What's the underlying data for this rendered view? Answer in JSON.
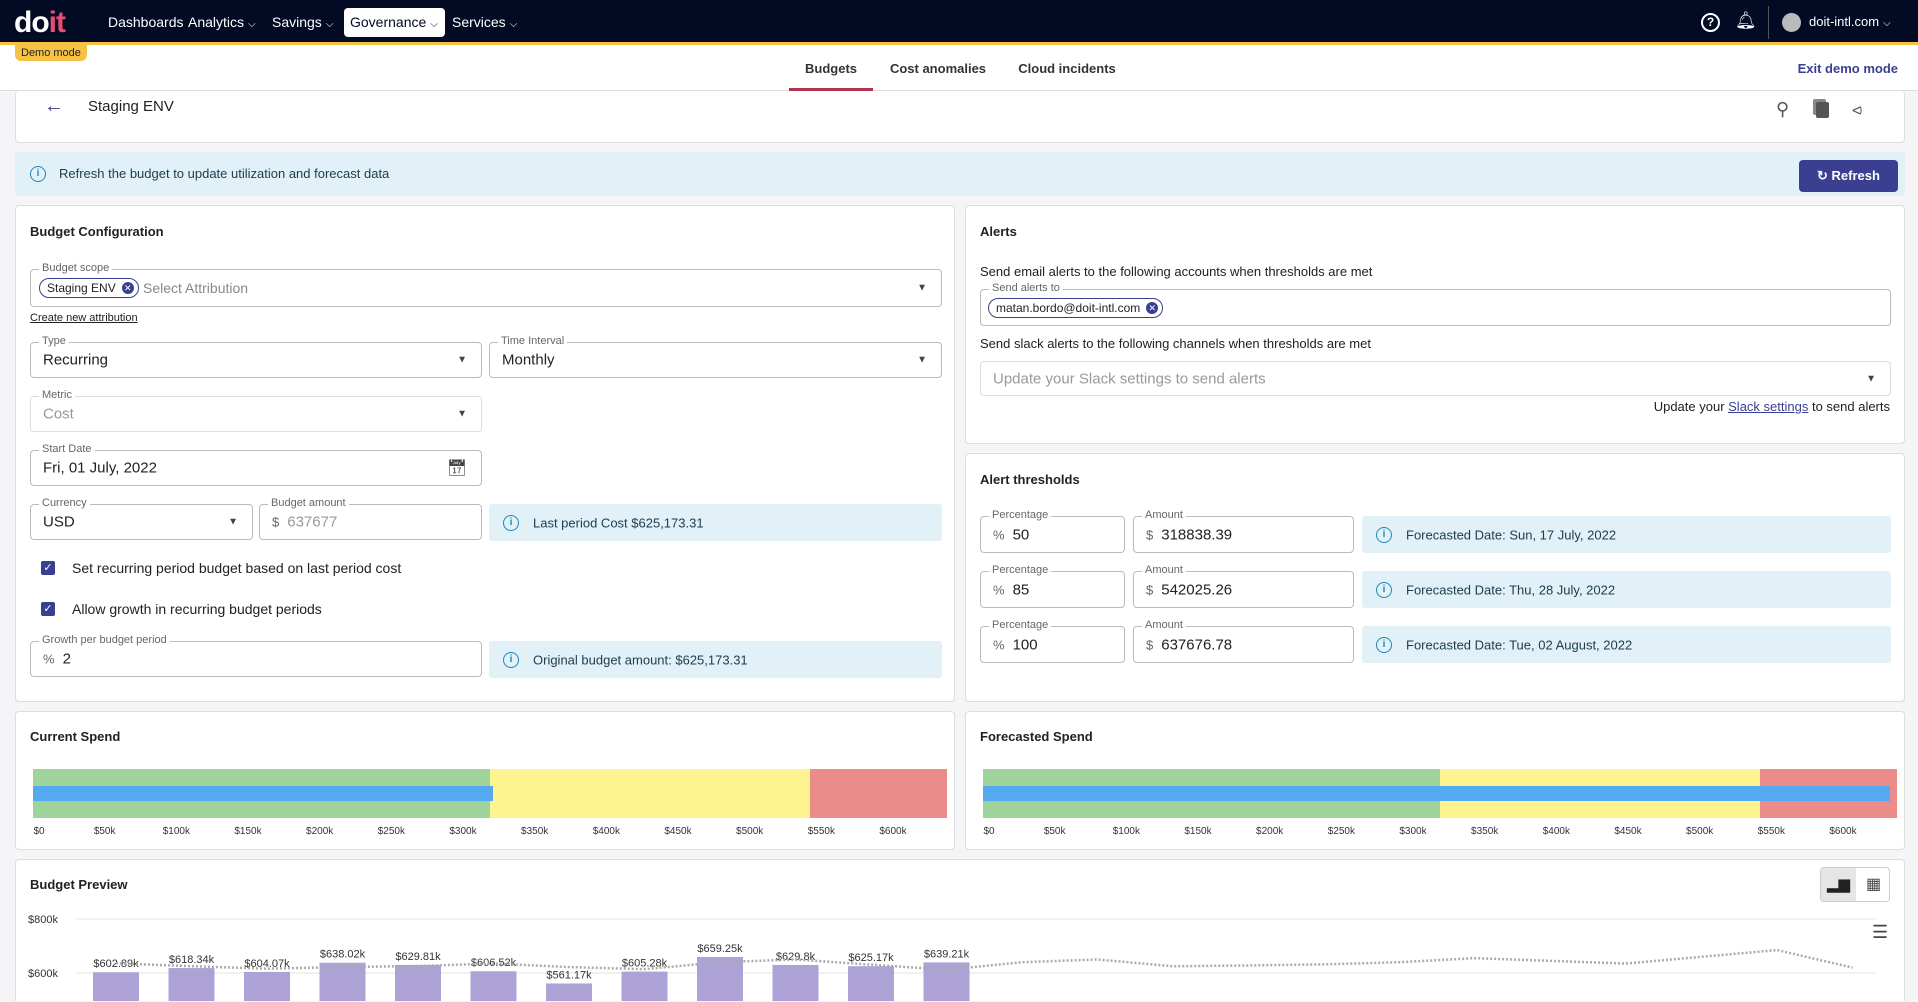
{
  "nav": {
    "logo": "doit",
    "items": [
      {
        "label": "Dashboards"
      },
      {
        "label": "Analytics"
      },
      {
        "label": "Savings"
      },
      {
        "label": "Governance",
        "active": true
      },
      {
        "label": "Services"
      }
    ],
    "account": "doit-intl.com",
    "demo_badge": "Demo mode"
  },
  "subnav": {
    "tabs": [
      {
        "label": "Budgets",
        "active": true
      },
      {
        "label": "Cost anomalies"
      },
      {
        "label": "Cloud incidents"
      }
    ],
    "exit_label": "Exit demo mode"
  },
  "header": {
    "title": "Staging ENV"
  },
  "banner": {
    "text": "Refresh the budget to update utilization and forecast data",
    "button": "Refresh"
  },
  "config": {
    "title": "Budget Configuration",
    "scope": {
      "label": "Budget scope",
      "chip": "Staging ENV",
      "placeholder": "Select Attribution"
    },
    "create_link": "Create new attribution",
    "type": {
      "label": "Type",
      "value": "Recurring"
    },
    "interval": {
      "label": "Time Interval",
      "value": "Monthly"
    },
    "metric": {
      "label": "Metric",
      "value": "Cost"
    },
    "start_date": {
      "label": "Start Date",
      "value": "Fri, 01 July, 2022"
    },
    "currency": {
      "label": "Currency",
      "value": "USD"
    },
    "amount": {
      "label": "Budget amount",
      "prefix": "$",
      "placeholder": "637677"
    },
    "last_period": "Last period Cost $625,173.31",
    "check1": {
      "label": "Set recurring period budget based on last period cost",
      "checked": true
    },
    "check2": {
      "label": "Allow growth in recurring budget periods",
      "checked": true
    },
    "growth": {
      "label": "Growth per budget period",
      "prefix": "%",
      "value": "2"
    },
    "original": "Original budget amount: $625,173.31"
  },
  "alerts": {
    "title": "Alerts",
    "email_text": "Send email alerts to the following accounts when thresholds are met",
    "send_label": "Send alerts to",
    "email_chip": "matan.bordo@doit-intl.com",
    "slack_text": "Send slack alerts to the following channels when thresholds are met",
    "slack_placeholder": "Update your Slack settings to send alerts",
    "slack_note_pre": "Update your ",
    "slack_link": "Slack settings",
    "slack_note_post": " to send alerts"
  },
  "thresholds": {
    "title": "Alert thresholds",
    "pct_label": "Percentage",
    "amt_label": "Amount",
    "pct_prefix": "%",
    "amt_prefix": "$",
    "rows": [
      {
        "pct": "50",
        "amount": "318838.39",
        "forecast": "Forecasted Date: Sun, 17 July, 2022"
      },
      {
        "pct": "85",
        "amount": "542025.26",
        "forecast": "Forecasted Date: Thu, 28 July, 2022"
      },
      {
        "pct": "100",
        "amount": "637676.78",
        "forecast": "Forecasted Date: Tue, 02 August, 2022"
      }
    ]
  },
  "colors": {
    "accent": "#3b3f91",
    "green": "#9fd39c",
    "yellow": "#fdf48f",
    "red": "#ea8d8a",
    "blue": "#55a9f0",
    "bar": "#ada2d6"
  },
  "chart_data": [
    {
      "type": "bar",
      "title": "Current Spend",
      "xlim": [
        0,
        637677
      ],
      "bands": [
        318838.39,
        542025.26,
        637676.78
      ],
      "value": 321000,
      "ticks": [
        "$0",
        "$50k",
        "$100k",
        "$150k",
        "$200k",
        "$250k",
        "$300k",
        "$350k",
        "$400k",
        "$450k",
        "$500k",
        "$550k",
        "$600k"
      ]
    },
    {
      "type": "bar",
      "title": "Forecasted Spend",
      "xlim": [
        0,
        637677
      ],
      "bands": [
        318838.39,
        542025.26,
        637676.78
      ],
      "value": 633000,
      "ticks": [
        "$0",
        "$50k",
        "$100k",
        "$150k",
        "$200k",
        "$250k",
        "$300k",
        "$350k",
        "$400k",
        "$450k",
        "$500k",
        "$550k",
        "$600k"
      ]
    },
    {
      "type": "bar",
      "title": "Budget Preview",
      "yticks": [
        "$600k",
        "$800k"
      ],
      "ytick_values": [
        600000,
        800000
      ],
      "grid": true,
      "values": [
        602890,
        618340,
        604070,
        638020,
        629810,
        606520,
        561170,
        605280,
        659250,
        629800,
        625170,
        639210
      ],
      "labels": [
        "$602.89k",
        "$618.34k",
        "$604.07k",
        "$638.02k",
        "$629.81k",
        "$606.52k",
        "$561.17k",
        "$605.28k",
        "$659.25k",
        "$629.8k",
        "$625.17k",
        "$639.21k"
      ],
      "line": [
        636000,
        625000,
        616000,
        622000,
        626000,
        635000,
        622000,
        614000,
        640000,
        650000,
        631000,
        612000,
        640000,
        650000,
        625000,
        628000,
        632000,
        640000,
        655000,
        645000,
        635000,
        660000,
        685000,
        620000
      ]
    }
  ]
}
